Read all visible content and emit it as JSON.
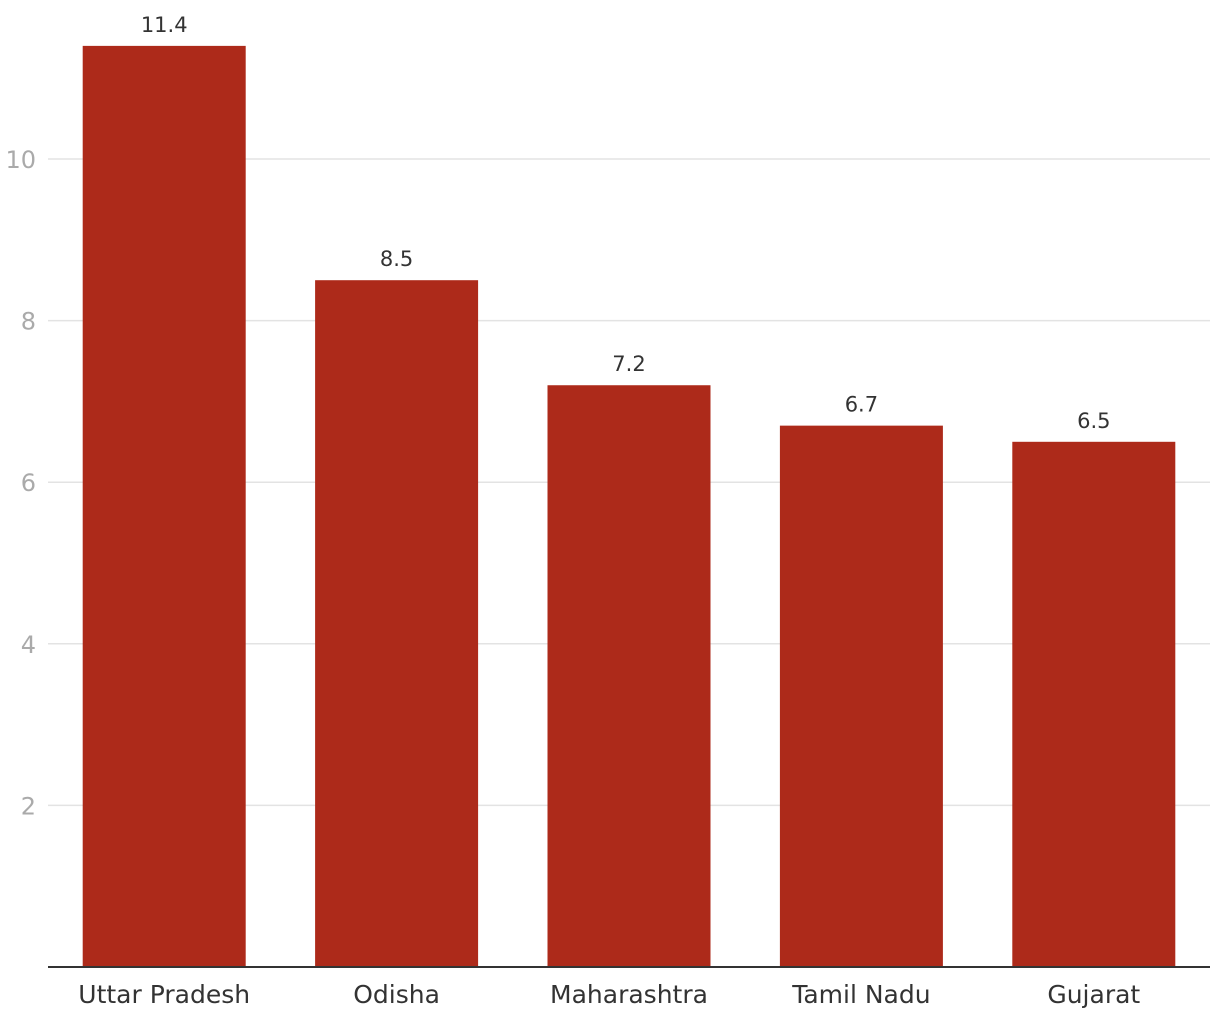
{
  "chart_data": {
    "type": "bar",
    "categories": [
      "Uttar Pradesh",
      "Odisha",
      "Maharashtra",
      "Tamil Nadu",
      "Gujarat"
    ],
    "values": [
      11.4,
      8.5,
      7.2,
      6.7,
      6.5
    ],
    "data_labels": [
      "11.4",
      "8.5",
      "7.2",
      "6.7",
      "6.5"
    ],
    "yticks": [
      2,
      4,
      6,
      8,
      10
    ],
    "ylim": [
      0,
      12
    ],
    "grid": true,
    "legend": "none",
    "colors": {
      "bar": "#ad2a1a"
    }
  }
}
